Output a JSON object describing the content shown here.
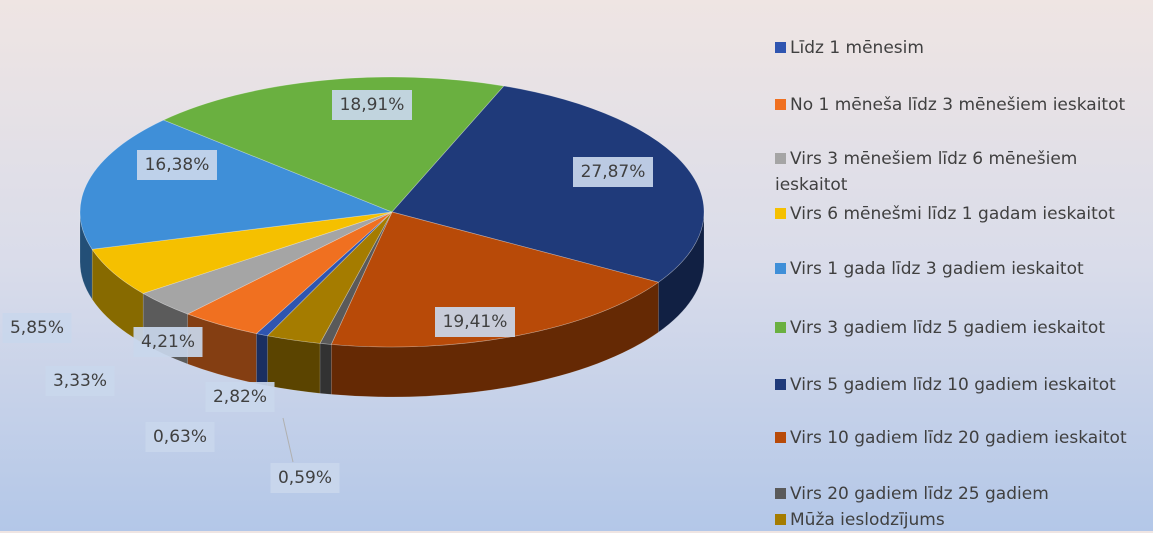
{
  "chart_data": {
    "type": "pie",
    "categories": [
      "Līdz 1 mēnesim",
      "No 1 mēneša līdz 3 mēnešiem ieskaitot",
      "Virs 3 mēnešiem līdz 6 mēnešiem ieskaitot",
      "Virs 6 mēnešmi līdz 1 gadam ieskaitot",
      "Virs 1 gada līdz 3 gadiem ieskaitot",
      "Virs 3 gadiem līdz 5 gadiem ieskaitot",
      "Virs 5 gadiem līdz 10 gadiem ieskaitot",
      "Virs 10 gadiem līdz 20 gadiem ieskaitot",
      "Virs 20 gadiem līdz 25 gadiem",
      "Mūža ieslodzījums"
    ],
    "values": [
      0.63,
      4.21,
      3.33,
      5.85,
      16.38,
      18.91,
      27.87,
      19.41,
      0.59,
      2.82
    ],
    "value_labels": [
      "0,63%",
      "4,21%",
      "3,33%",
      "5,85%",
      "16,38%",
      "18,91%",
      "27,87%",
      "19,41%",
      "0,59%",
      "2,82%"
    ],
    "colors": [
      "#2f55b0",
      "#f07020",
      "#a5a5a5",
      "#f5c000",
      "#3f8fd8",
      "#6ab040",
      "#1f3a7a",
      "#b84a08",
      "#5a5a5a",
      "#a57c00"
    ],
    "legend": "right"
  }
}
